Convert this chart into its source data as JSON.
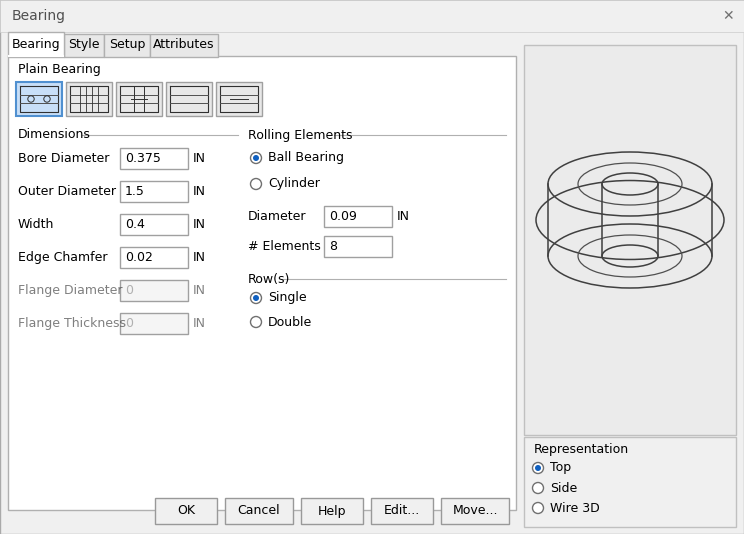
{
  "title": "Bearing",
  "bg_color": "#f0f0f0",
  "white": "#ffffff",
  "blue_highlight": "#c8dff8",
  "tabs": [
    "Bearing",
    "Style",
    "Setup",
    "Attributes"
  ],
  "section_label": "Plain Bearing",
  "dimensions_label": "Dimensions",
  "rolling_label": "Rolling Elements",
  "rows_label": "Row(s)",
  "fields": [
    {
      "label": "Bore Diameter",
      "value": "0.375",
      "unit": "IN",
      "enabled": true
    },
    {
      "label": "Outer Diameter",
      "value": "1.5",
      "unit": "IN",
      "enabled": true
    },
    {
      "label": "Width",
      "value": "0.4",
      "unit": "IN",
      "enabled": true
    },
    {
      "label": "Edge Chamfer",
      "value": "0.02",
      "unit": "IN",
      "enabled": true
    },
    {
      "label": "Flange Diameter",
      "value": "0",
      "unit": "IN",
      "enabled": false
    },
    {
      "label": "Flange Thickness",
      "value": "0",
      "unit": "IN",
      "enabled": false
    }
  ],
  "rolling_radios": [
    {
      "label": "Ball Bearing",
      "selected": true
    },
    {
      "label": "Cylinder",
      "selected": false
    }
  ],
  "rolling_fields": [
    {
      "label": "Diameter",
      "value": "0.09",
      "unit": "IN"
    },
    {
      "label": "# Elements",
      "value": "8",
      "unit": ""
    }
  ],
  "row_radios": [
    {
      "label": "Single",
      "selected": true
    },
    {
      "label": "Double",
      "selected": false
    }
  ],
  "rep_label": "Representation",
  "rep_radios": [
    {
      "label": "Top",
      "selected": true
    },
    {
      "label": "Side",
      "selected": false
    },
    {
      "label": "Wire 3D",
      "selected": false
    }
  ],
  "buttons": [
    "OK",
    "Cancel",
    "Help",
    "Edit...",
    "Move..."
  ]
}
